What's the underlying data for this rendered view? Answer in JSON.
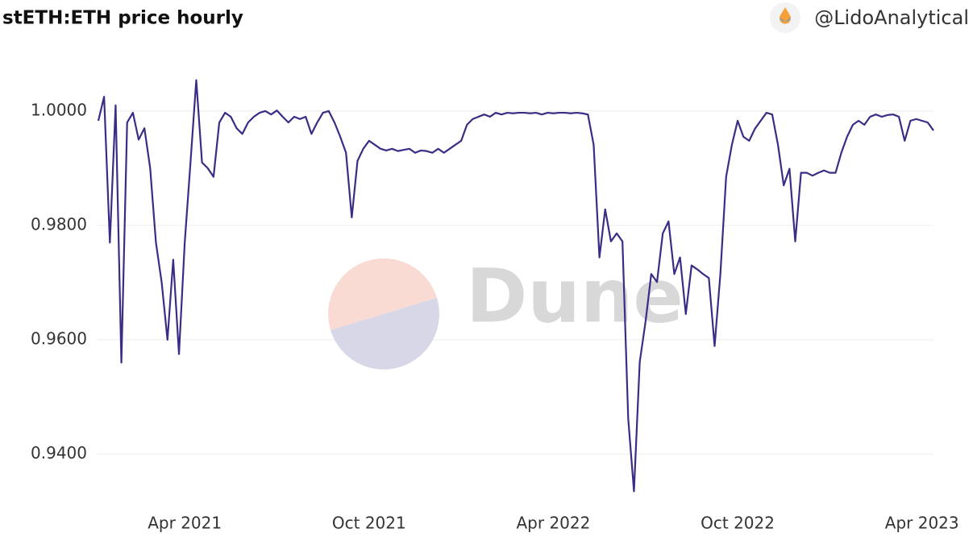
{
  "chart_data": {
    "type": "line",
    "title": "stETH:ETH price hourly",
    "author": "@LidoAnalytical",
    "watermark": "Dune",
    "categories": [
      null,
      null,
      null,
      null,
      null,
      null,
      null,
      null,
      null,
      null,
      null,
      null,
      null,
      null,
      null,
      "Apr 2021",
      null,
      null,
      null,
      null,
      null,
      null,
      null,
      null,
      null,
      null,
      null,
      null,
      null,
      null,
      null,
      null,
      null,
      null,
      null,
      null,
      null,
      null,
      null,
      null,
      null,
      null,
      null,
      null,
      null,
      null,
      null,
      "Oct 2021",
      null,
      null,
      null,
      null,
      null,
      null,
      null,
      null,
      null,
      null,
      null,
      null,
      null,
      null,
      null,
      null,
      null,
      null,
      null,
      null,
      null,
      null,
      null,
      null,
      null,
      null,
      null,
      null,
      null,
      null,
      null,
      "Apr 2022",
      null,
      null,
      null,
      null,
      null,
      null,
      null,
      null,
      null,
      null,
      null,
      null,
      null,
      null,
      null,
      null,
      null,
      null,
      null,
      null,
      null,
      null,
      null,
      null,
      null,
      null,
      null,
      null,
      null,
      null,
      null,
      "Oct 2022",
      null,
      null,
      null,
      null,
      null,
      null,
      null,
      null,
      null,
      null,
      null,
      null,
      null,
      null,
      null,
      null,
      null,
      null,
      null,
      null,
      null,
      null,
      null,
      null,
      null,
      null,
      null,
      null,
      null,
      null,
      null,
      "Apr 2023",
      null,
      null
    ],
    "series": [
      {
        "color": "#3b2c85",
        "values": [
          0.9983,
          1.0025,
          0.977,
          1.001,
          0.956,
          0.998,
          0.9997,
          0.995,
          0.997,
          0.99,
          0.977,
          0.97,
          0.96,
          0.974,
          0.9575,
          0.977,
          0.991,
          1.0054,
          0.991,
          0.99,
          0.9885,
          0.998,
          0.9997,
          0.999,
          0.997,
          0.996,
          0.998,
          0.999,
          0.9997,
          1.0,
          0.9994,
          1.0001,
          0.999,
          0.998,
          0.999,
          0.9986,
          0.999,
          0.996,
          0.998,
          0.9997,
          1.0,
          0.998,
          0.9955,
          0.9927,
          0.9814,
          0.9913,
          0.9934,
          0.9948,
          0.9941,
          0.9934,
          0.9931,
          0.9934,
          0.993,
          0.9932,
          0.9934,
          0.9927,
          0.9931,
          0.993,
          0.9927,
          0.9934,
          0.9927,
          0.9934,
          0.9941,
          0.9948,
          0.9976,
          0.9986,
          0.999,
          0.9994,
          0.999,
          0.9997,
          0.9994,
          0.9997,
          0.9996,
          0.9997,
          0.9997,
          0.9996,
          0.9997,
          0.9994,
          0.9997,
          0.9996,
          0.9997,
          0.9997,
          0.9996,
          0.9997,
          0.9996,
          0.9994,
          0.9941,
          0.9744,
          0.9828,
          0.9772,
          0.9786,
          0.9772,
          0.9462,
          0.9335,
          0.9561,
          0.9631,
          0.9715,
          0.9701,
          0.9786,
          0.9807,
          0.9715,
          0.9744,
          0.9645,
          0.973,
          0.9723,
          0.9715,
          0.9708,
          0.9589,
          0.9715,
          0.9885,
          0.9941,
          0.9983,
          0.9955,
          0.9948,
          0.9969,
          0.9983,
          0.9997,
          0.9994,
          0.9941,
          0.987,
          0.9899,
          0.9772,
          0.9892,
          0.9892,
          0.9887,
          0.9892,
          0.9896,
          0.9892,
          0.9892,
          0.9927,
          0.9955,
          0.9976,
          0.9983,
          0.9976,
          0.999,
          0.9994,
          0.999,
          0.9993,
          0.9994,
          0.999,
          0.9948,
          0.9983,
          0.9986,
          0.9983,
          0.998,
          0.9966
        ]
      }
    ],
    "ylim": [
      0.931,
      1.009
    ],
    "yticks": [
      {
        "value": 0.94,
        "label": "0.9400"
      },
      {
        "value": 0.96,
        "label": "0.9600"
      },
      {
        "value": 0.98,
        "label": "0.9800"
      },
      {
        "value": 1.0,
        "label": "1.0000"
      }
    ],
    "grid": true
  }
}
